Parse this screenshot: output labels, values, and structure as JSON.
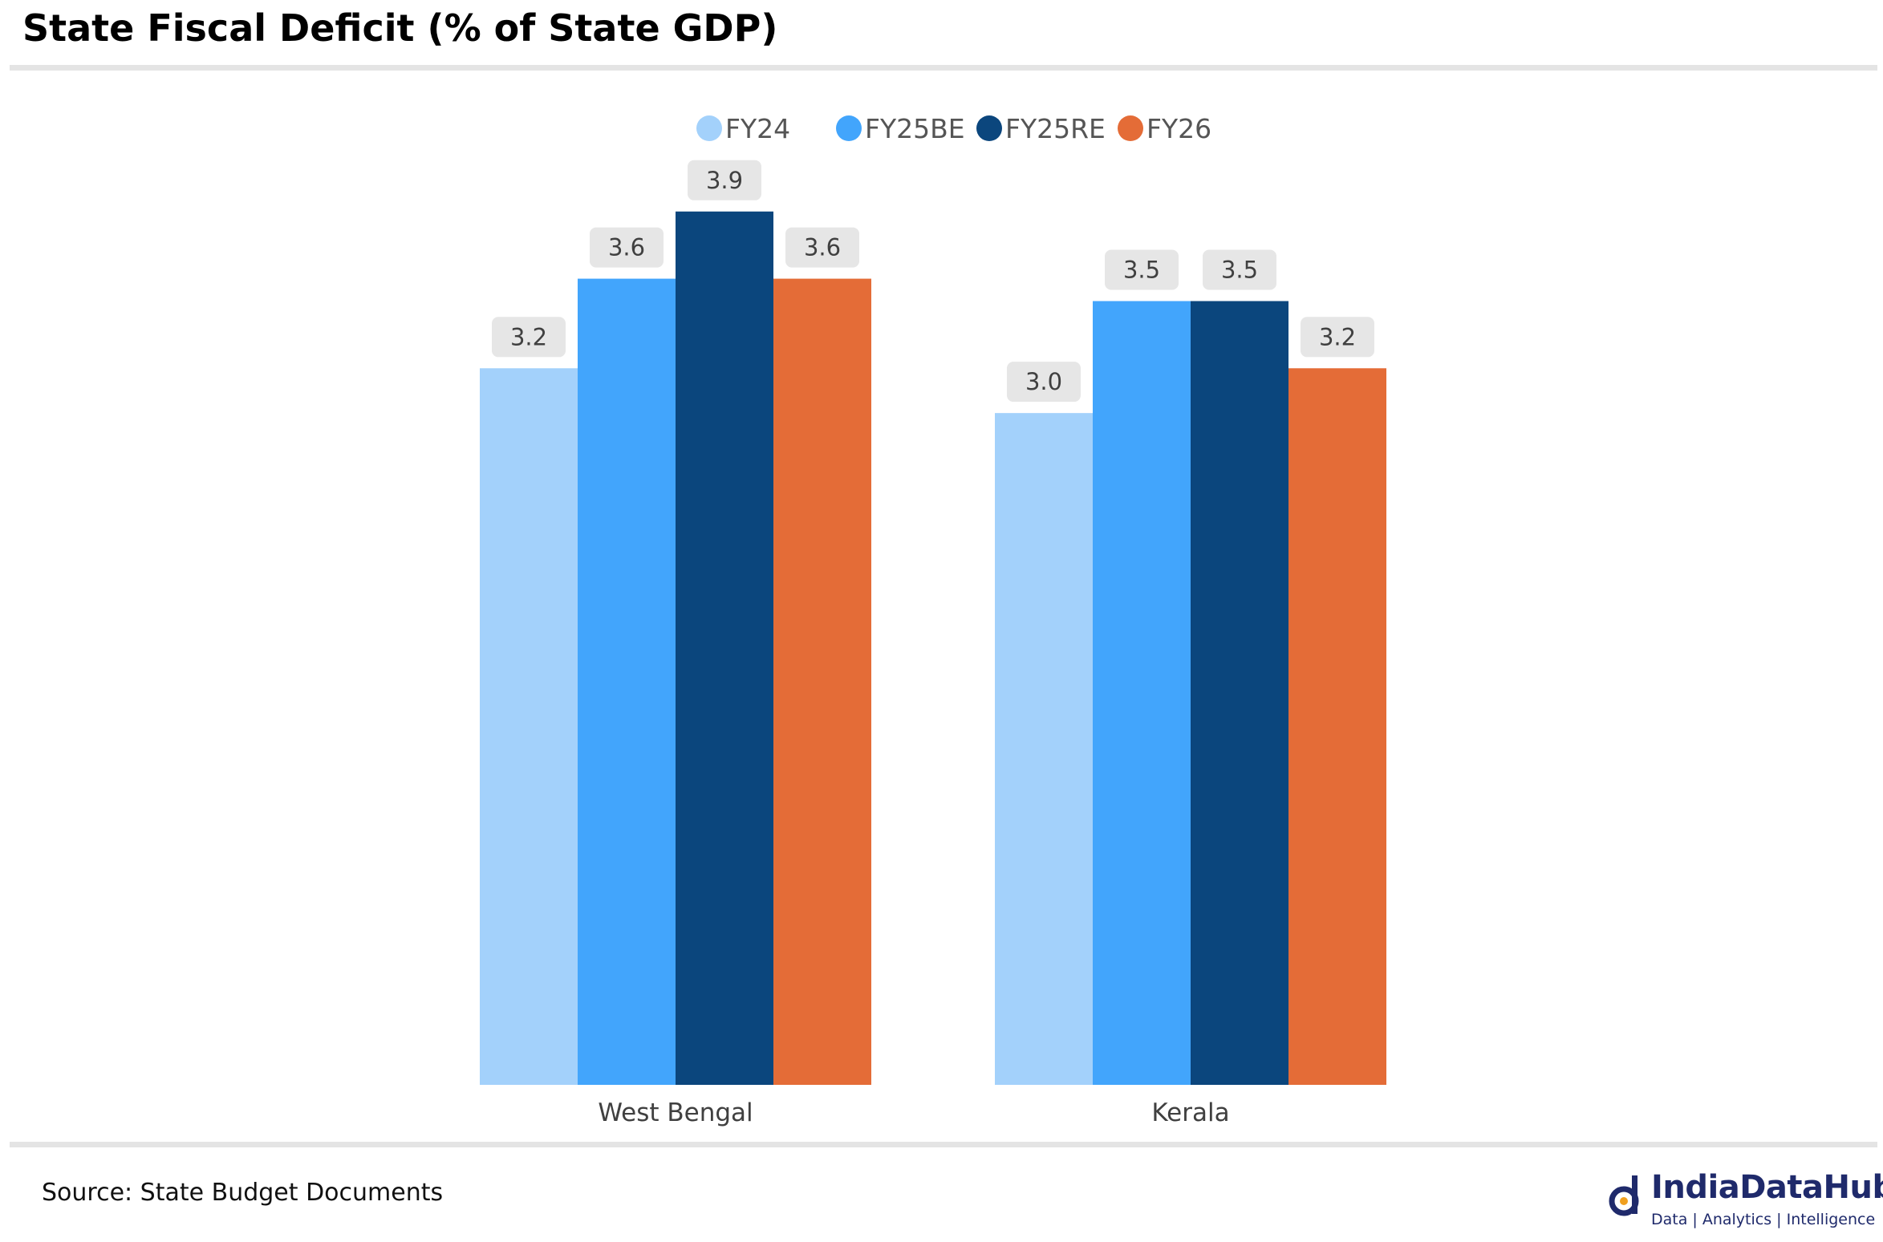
{
  "header": {
    "title": "State Fiscal Deficit (% of State GDP)"
  },
  "footer": {
    "source": "Source: State Budget Documents",
    "brand": "IndiaDataHub",
    "tagline": "Data | Analytics | Intelligence"
  },
  "chart_data": {
    "type": "bar",
    "title": "State Fiscal Deficit (% of State GDP)",
    "xlabel": "",
    "ylabel": "",
    "categories": [
      "West Bengal",
      "Kerala"
    ],
    "series": [
      {
        "name": "FY24",
        "values": [
          3.2,
          3.0
        ],
        "color": "#a3d1fb"
      },
      {
        "name": "FY25BE",
        "values": [
          3.6,
          3.5
        ],
        "color": "#42a5fc"
      },
      {
        "name": "FY25RE",
        "values": [
          3.9,
          3.5
        ],
        "color": "#0b467d"
      },
      {
        "name": "FY26",
        "values": [
          3.6,
          3.2
        ],
        "color": "#e46c37"
      }
    ],
    "ylim": [
      0,
      4.2
    ],
    "grid": false,
    "legend": "top-center",
    "data_labels": true
  }
}
